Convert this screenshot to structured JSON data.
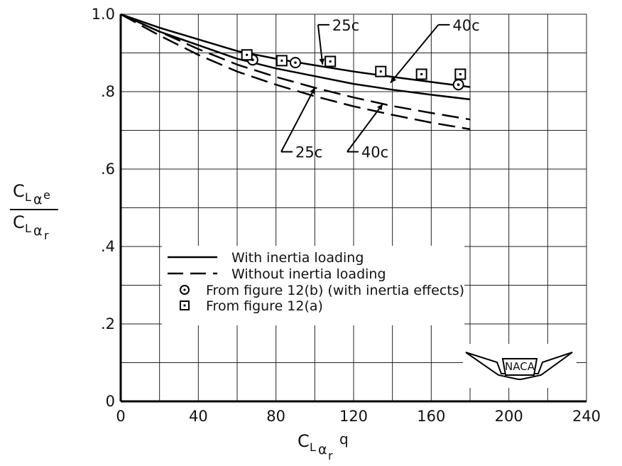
{
  "chart_data": {
    "type": "line",
    "xlim": [
      0,
      240
    ],
    "ylim": [
      0,
      1.0
    ],
    "grid": true,
    "x_ticks": [
      0,
      40,
      80,
      120,
      160,
      200,
      240
    ],
    "x_tick_labels": [
      "0",
      "40",
      "80",
      "120",
      "160",
      "200",
      "240"
    ],
    "y_ticks": [
      0,
      0.2,
      0.4,
      0.6,
      0.8,
      1.0
    ],
    "y_tick_labels": [
      "0",
      ".2",
      ".4",
      ".6",
      ".8",
      "1.0"
    ],
    "xlabel": {
      "main": "C",
      "sub": "L",
      "subsub": "α",
      "subsubsub": "r",
      "tail": "q"
    },
    "ylabel": {
      "numerator": {
        "main": "C",
        "sub": "L",
        "subsub": "α",
        "subsubsub": "e"
      },
      "denominator": {
        "main": "C",
        "sub": "L",
        "subsub": "α",
        "subsubsub": "r"
      }
    },
    "series": [
      {
        "label": "25c",
        "style": "solid",
        "points": [
          [
            0,
            1.0
          ],
          [
            20,
            0.965
          ],
          [
            40,
            0.935
          ],
          [
            60,
            0.905
          ],
          [
            80,
            0.885
          ],
          [
            100,
            0.868
          ],
          [
            120,
            0.852
          ],
          [
            140,
            0.838
          ],
          [
            160,
            0.825
          ],
          [
            180,
            0.812
          ]
        ]
      },
      {
        "label": "40c",
        "style": "solid",
        "points": [
          [
            0,
            1.0
          ],
          [
            20,
            0.955
          ],
          [
            40,
            0.92
          ],
          [
            60,
            0.885
          ],
          [
            80,
            0.86
          ],
          [
            100,
            0.84
          ],
          [
            120,
            0.82
          ],
          [
            140,
            0.805
          ],
          [
            160,
            0.792
          ],
          [
            180,
            0.78
          ]
        ]
      },
      {
        "label": "25c",
        "style": "dashed",
        "points": [
          [
            0,
            1.0
          ],
          [
            20,
            0.955
          ],
          [
            40,
            0.91
          ],
          [
            60,
            0.87
          ],
          [
            80,
            0.838
          ],
          [
            100,
            0.81
          ],
          [
            120,
            0.785
          ],
          [
            140,
            0.763
          ],
          [
            160,
            0.745
          ],
          [
            180,
            0.728
          ]
        ]
      },
      {
        "label": "40c",
        "style": "dashed",
        "points": [
          [
            0,
            1.0
          ],
          [
            20,
            0.945
          ],
          [
            40,
            0.895
          ],
          [
            60,
            0.852
          ],
          [
            80,
            0.818
          ],
          [
            100,
            0.788
          ],
          [
            120,
            0.762
          ],
          [
            140,
            0.74
          ],
          [
            160,
            0.72
          ],
          [
            180,
            0.703
          ]
        ]
      }
    ],
    "markers_circle": [
      [
        68,
        0.882
      ],
      [
        90,
        0.875
      ],
      [
        174,
        0.818
      ]
    ],
    "markers_square": [
      [
        65,
        0.895
      ],
      [
        83,
        0.88
      ],
      [
        108,
        0.878
      ],
      [
        134,
        0.852
      ],
      [
        155,
        0.845
      ],
      [
        175,
        0.845
      ]
    ],
    "annotations": [
      {
        "text": "25c",
        "x": 109,
        "y": 0.958,
        "tip_x": 104,
        "tip_y": 0.87
      },
      {
        "text": "40c",
        "x": 171,
        "y": 0.958,
        "tip_x": 139,
        "tip_y": 0.823
      },
      {
        "text": "25c",
        "x": 90,
        "y": 0.63,
        "tip_x": 100,
        "tip_y": 0.81
      },
      {
        "text": "40c",
        "x": 124,
        "y": 0.63,
        "tip_x": 135,
        "tip_y": 0.768
      }
    ],
    "legend": {
      "placement": "lower-center",
      "entries": [
        {
          "kind": "solid",
          "text": "With inertia loading"
        },
        {
          "kind": "dashed",
          "text": "Without inertia loading"
        },
        {
          "kind": "circle",
          "text": "From figure 12(b)  (with inertia effects)"
        },
        {
          "kind": "square",
          "text": "From figure 12(a)"
        }
      ]
    },
    "logo_text": "NACA"
  }
}
